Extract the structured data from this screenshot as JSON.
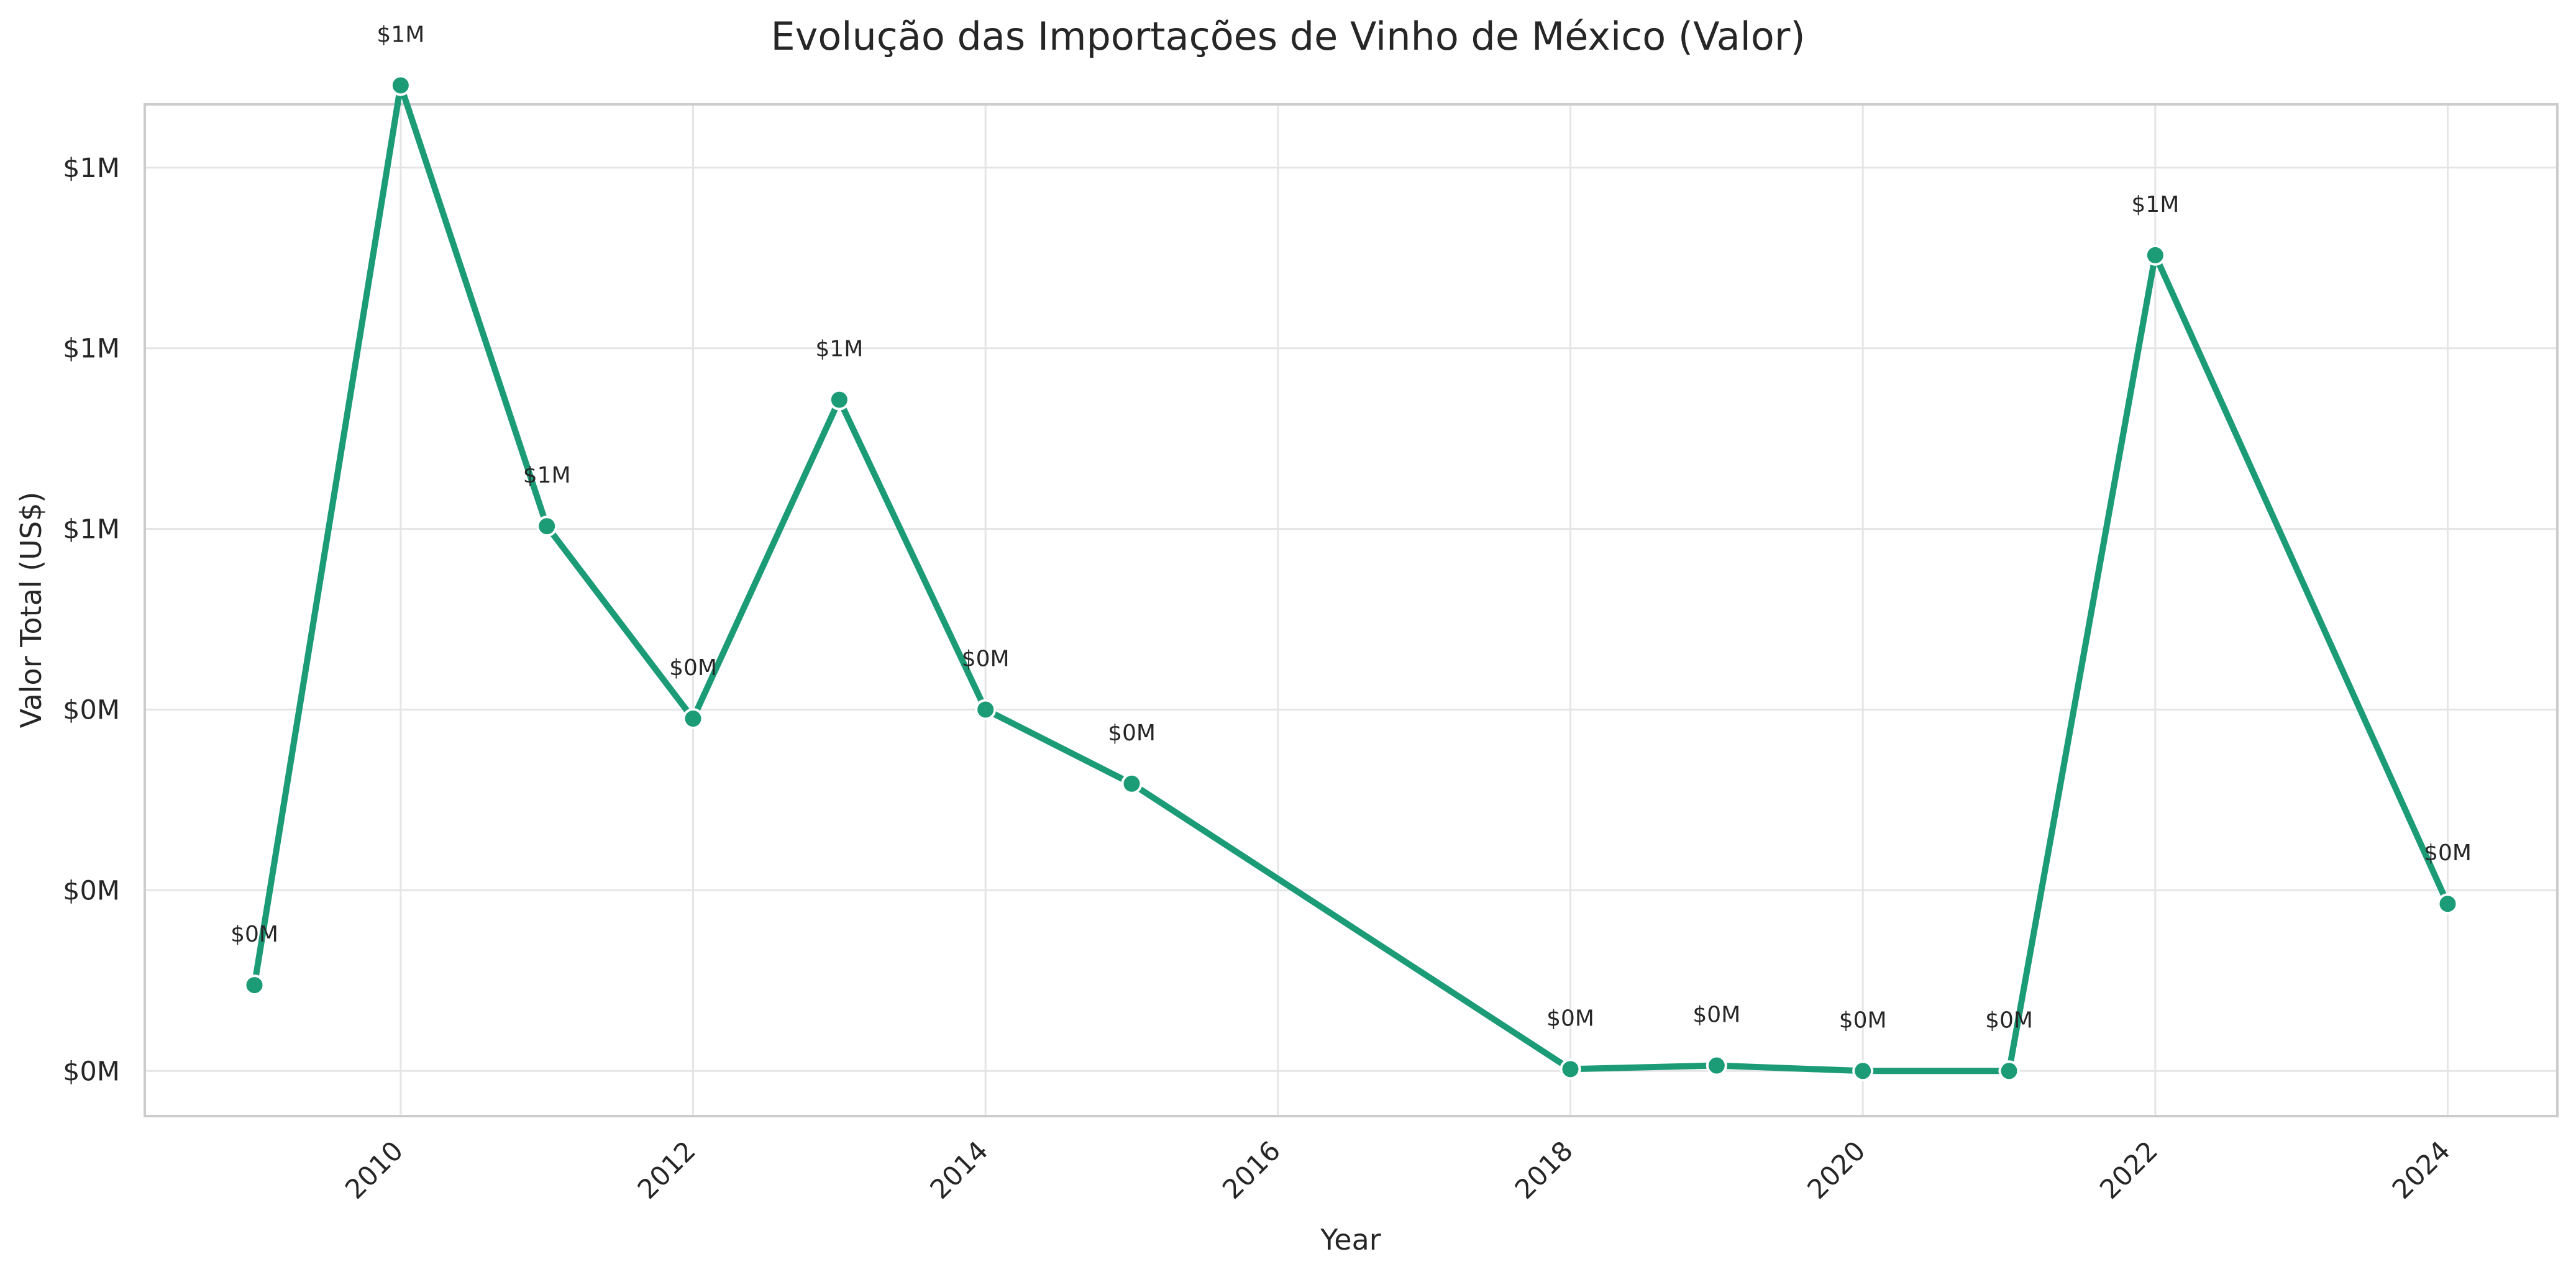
{
  "chart_data": {
    "type": "line",
    "title": "Evolução das Importações de Vinho de México (Valor)",
    "xlabel": "Year",
    "ylabel": "Valor Total (US$)",
    "xlim": [
      2008.25,
      2024.75
    ],
    "ylim": [
      0,
      0.00112
    ],
    "x_ticks": [
      2010,
      2012,
      2014,
      2016,
      2018,
      2020,
      2022,
      2024
    ],
    "x_tick_labels": [
      "2010",
      "2012",
      "2014",
      "2016",
      "2018",
      "2020",
      "2022",
      "2024"
    ],
    "y_ticks": [
      5e-05,
      0.00025,
      0.00045,
      0.00065,
      0.00085,
      0.00105
    ],
    "y_tick_labels": [
      "$0M",
      "$0M",
      "$0M",
      "$1M",
      "$1M",
      "$1M"
    ],
    "grid": true,
    "color": "#1b9b76",
    "series": [
      {
        "x": [
          2009,
          2010,
          2011,
          2012,
          2013,
          2014,
          2015,
          2018,
          2019,
          2020,
          2021,
          2022,
          2024
        ],
        "values": [
          0.000145,
          0.001141,
          0.000653,
          0.00044,
          0.000793,
          0.00045,
          0.000368,
          5.2e-05,
          5.6e-05,
          5e-05,
          5e-05,
          0.000953,
          0.000235
        ],
        "point_labels": [
          "$0M",
          "$1M",
          "$1M",
          "$0M",
          "$1M",
          "$0M",
          "$0M",
          "$0M",
          "$0M",
          "$0M",
          "$0M",
          "$1M",
          "$0M"
        ]
      }
    ]
  }
}
